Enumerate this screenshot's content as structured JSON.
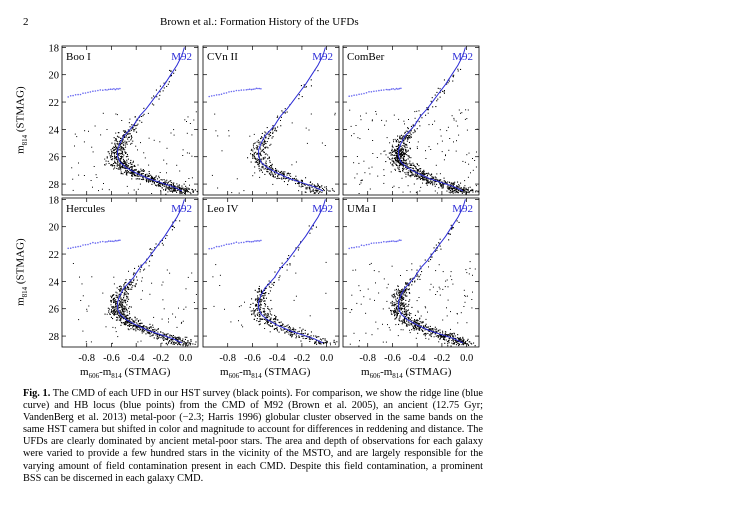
{
  "page": {
    "number": "2",
    "running_head": "Brown et al.: Formation History of the UFDs"
  },
  "figure": {
    "y_axis_title": "m814 (STMAG)",
    "x_axis_title": "m606-m814 (STMAG)",
    "y_ticks": [
      "18",
      "20",
      "22",
      "24",
      "26",
      "28"
    ],
    "x_ticks": [
      "-0.8",
      "-0.6",
      "-0.4",
      "-0.2",
      "0.0"
    ],
    "reference_label": "M92",
    "panels": [
      {
        "name": "Boo I"
      },
      {
        "name": "CVn II"
      },
      {
        "name": "ComBer"
      },
      {
        "name": "Hercules"
      },
      {
        "name": "Leo IV"
      },
      {
        "name": "UMa I"
      }
    ]
  },
  "chart_data": {
    "type": "scatter",
    "xlabel": "m606-m814 (STMAG)",
    "ylabel": "m814 (STMAG)",
    "xlim": [
      -1.0,
      0.1
    ],
    "ylim": [
      28.8,
      17.9
    ],
    "series": [
      {
        "name": "M92",
        "kind": "ridge line",
        "x": [
          -0.01,
          -0.03,
          -0.07,
          -0.12,
          -0.17,
          -0.22,
          -0.27,
          -0.32,
          -0.37,
          -0.4,
          -0.42,
          -0.45,
          -0.5,
          -0.53,
          -0.55,
          -0.55,
          -0.53,
          -0.48,
          -0.4,
          -0.3,
          -0.2,
          -0.1,
          -0.03
        ],
        "y": [
          18.0,
          18.6,
          19.3,
          20.0,
          20.7,
          21.3,
          21.9,
          22.5,
          23.0,
          23.4,
          23.7,
          24.0,
          24.5,
          25.0,
          25.5,
          26.0,
          26.4,
          26.8,
          27.2,
          27.6,
          27.9,
          28.2,
          28.5
        ]
      },
      {
        "name": "M92",
        "kind": "HB locus",
        "x": [
          -0.95,
          -0.85,
          -0.75,
          -0.65,
          -0.58,
          -0.52
        ],
        "y": [
          21.6,
          21.4,
          21.2,
          21.1,
          21.05,
          21.0
        ]
      }
    ],
    "colors": {
      "ridge": "#2b2bd6",
      "hb": "#6b6bf0",
      "stars": "#000000"
    }
  },
  "caption": {
    "label": "Fig. 1.",
    "text": "The CMD of each UFD in our HST survey (black points). For comparison, we show the ridge line (blue curve) and HB locus (blue points) from the CMD of M92 (Brown et al. 2005), an ancient (12.75 Gyr; VandenBerg et al. 2013) metal-poor (−2.3; Harris 1996) globular cluster observed in the same bands on the same HST camera but shifted in color and magnitude to account for differences in reddening and distance. The UFDs are clearly dominated by ancient metal-poor stars. The area and depth of observations for each galaxy were varied to provide a few hundred stars in the vicinity of the MSTO, and are largely responsible for the varying amount of field contamination present in each CMD. Despite this field contamination, a prominent BSS can be discerned in each galaxy CMD."
  }
}
